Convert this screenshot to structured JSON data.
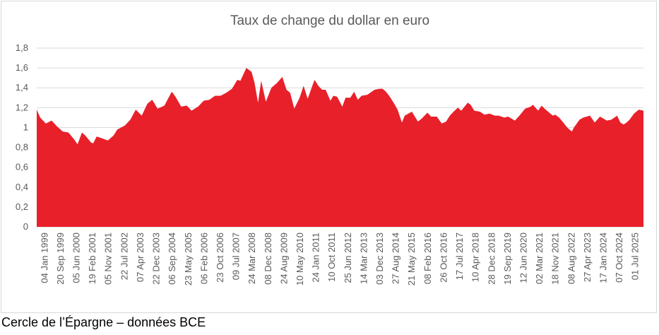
{
  "caption": "Cercle de l’Épargne – données BCE",
  "colors": {
    "area": "#e8202a",
    "grid": "#d9d9d9",
    "text": "#595959",
    "border": "#d9d9d9"
  },
  "chart_data": {
    "type": "area",
    "title": "Taux de change du dollar en euro",
    "xlabel": "",
    "ylabel": "",
    "ylim": [
      0,
      1.8
    ],
    "y_ticks": [
      "0",
      "0,2",
      "0,4",
      "0,6",
      "0,8",
      "1",
      "1,2",
      "1,4",
      "1,6",
      "1,8"
    ],
    "grid": true,
    "legend": "none",
    "x_ticks": [
      "04 Jan 1999",
      "20 Sep 1999",
      "05 Jun 2000",
      "19 Feb 2001",
      "05 Nov 2001",
      "22 Jul 2002",
      "07 Apr 2003",
      "22 Dec 2003",
      "06 Sep 2004",
      "23 May 2005",
      "06 Feb 2006",
      "23 Oct 2006",
      "09 Jul 2007",
      "24 Mar 2008",
      "08 Dec 2008",
      "24 Aug 2009",
      "10 May 2010",
      "24 Jan 2011",
      "10 Oct 2011",
      "25 Jun 2012",
      "14 Mar 2013",
      "03 Dec 2013",
      "27 Aug 2014",
      "21 May 2015",
      "08 Feb 2016",
      "26 Oct 2016",
      "17 Jul 2017",
      "10 Apr 2018",
      "28 Dec 2018",
      "19 Sep 2019",
      "12 Jun 2020",
      "02 Mar 2021",
      "18 Nov 2021",
      "08 Aug 2022",
      "27 Apr 2023",
      "17 Jan 2024",
      "07 Oct 2024",
      "01 Jul 2025"
    ],
    "series": [
      {
        "x": [
          "1999-01-04",
          "1999-03-01",
          "1999-06-01",
          "1999-09-01",
          "1999-12-01",
          "2000-03-01",
          "2000-06-01",
          "2000-09-01",
          "2000-10-26",
          "2001-01-05",
          "2001-03-01",
          "2001-06-01",
          "2001-07-05",
          "2001-09-01",
          "2001-12-01",
          "2002-03-01",
          "2002-06-01",
          "2002-08-01",
          "2002-12-01",
          "2003-03-01",
          "2003-05-27",
          "2003-09-01",
          "2003-12-01",
          "2004-02-18",
          "2004-05-15",
          "2004-09-01",
          "2004-12-30",
          "2005-03-01",
          "2005-06-01",
          "2005-09-01",
          "2005-11-15",
          "2006-03-01",
          "2006-06-01",
          "2006-09-01",
          "2006-12-01",
          "2007-03-01",
          "2007-06-01",
          "2007-09-01",
          "2007-11-27",
          "2008-01-15",
          "2008-04-22",
          "2008-07-15",
          "2008-09-01",
          "2008-10-27",
          "2008-12-18",
          "2009-03-04",
          "2009-06-01",
          "2009-09-01",
          "2009-11-25",
          "2010-02-01",
          "2010-04-01",
          "2010-06-07",
          "2010-09-01",
          "2010-11-04",
          "2011-01-10",
          "2011-04-01",
          "2011-05-03",
          "2011-07-01",
          "2011-09-01",
          "2011-10-27",
          "2012-01-13",
          "2012-03-01",
          "2012-05-01",
          "2012-07-24",
          "2012-09-14",
          "2012-12-01",
          "2013-02-01",
          "2013-04-01",
          "2013-06-01",
          "2013-09-01",
          "2013-12-27",
          "2014-03-17",
          "2014-05-08",
          "2014-07-01",
          "2014-09-01",
          "2014-11-01",
          "2015-01-05",
          "2015-03-16",
          "2015-05-01",
          "2015-08-24",
          "2015-12-01",
          "2016-02-01",
          "2016-05-03",
          "2016-07-01",
          "2016-10-01",
          "2016-12-20",
          "2017-03-01",
          "2017-05-01",
          "2017-07-01",
          "2017-09-08",
          "2017-11-01",
          "2018-02-16",
          "2018-04-01",
          "2018-06-01",
          "2018-09-01",
          "2018-11-12",
          "2019-02-01",
          "2019-05-01",
          "2019-07-01",
          "2019-10-01",
          "2019-12-01",
          "2020-03-20",
          "2020-06-01",
          "2020-09-01",
          "2020-12-01",
          "2021-01-06",
          "2021-03-31",
          "2021-05-25",
          "2021-08-01",
          "2021-11-24",
          "2022-01-01",
          "2022-03-07",
          "2022-05-12",
          "2022-07-14",
          "2022-09-28",
          "2022-11-01",
          "2023-02-01",
          "2023-04-01",
          "2023-07-18",
          "2023-10-03",
          "2023-12-27",
          "2024-04-16",
          "2024-07-01",
          "2024-09-30",
          "2024-11-22",
          "2025-01-13",
          "2025-03-03",
          "2025-04-21",
          "2025-07-01",
          "2025-09-17",
          "2025-12-01"
        ],
        "values": [
          1.18,
          1.1,
          1.04,
          1.07,
          1.01,
          0.96,
          0.95,
          0.88,
          0.83,
          0.95,
          0.92,
          0.85,
          0.84,
          0.91,
          0.89,
          0.87,
          0.92,
          0.98,
          1.02,
          1.08,
          1.18,
          1.12,
          1.24,
          1.28,
          1.19,
          1.22,
          1.36,
          1.31,
          1.21,
          1.22,
          1.17,
          1.21,
          1.27,
          1.28,
          1.32,
          1.32,
          1.35,
          1.39,
          1.48,
          1.47,
          1.6,
          1.56,
          1.45,
          1.25,
          1.47,
          1.26,
          1.4,
          1.45,
          1.51,
          1.38,
          1.35,
          1.19,
          1.3,
          1.42,
          1.29,
          1.43,
          1.48,
          1.42,
          1.38,
          1.38,
          1.27,
          1.32,
          1.31,
          1.21,
          1.3,
          1.3,
          1.36,
          1.28,
          1.32,
          1.33,
          1.38,
          1.39,
          1.39,
          1.36,
          1.31,
          1.25,
          1.18,
          1.05,
          1.12,
          1.16,
          1.06,
          1.09,
          1.15,
          1.11,
          1.11,
          1.04,
          1.06,
          1.12,
          1.16,
          1.2,
          1.17,
          1.25,
          1.23,
          1.17,
          1.16,
          1.13,
          1.14,
          1.12,
          1.12,
          1.1,
          1.11,
          1.07,
          1.12,
          1.19,
          1.21,
          1.23,
          1.17,
          1.22,
          1.18,
          1.12,
          1.13,
          1.1,
          1.05,
          1.0,
          0.96,
          1.0,
          1.08,
          1.1,
          1.12,
          1.05,
          1.11,
          1.07,
          1.08,
          1.12,
          1.05,
          1.03,
          1.05,
          1.08,
          1.14,
          1.18,
          1.17
        ]
      }
    ]
  }
}
